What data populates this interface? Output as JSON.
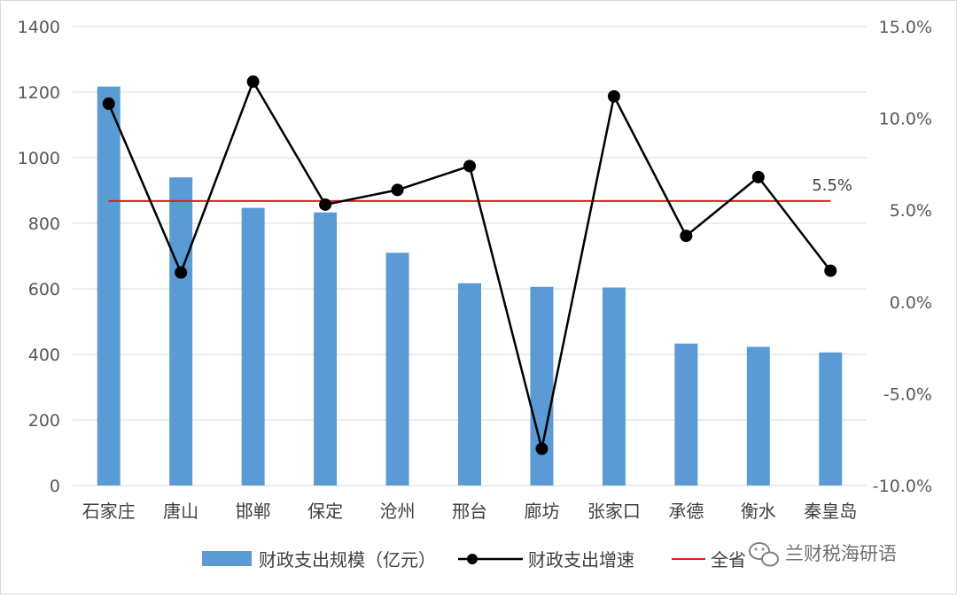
{
  "chart_data": {
    "type": "bar+line",
    "categories": [
      "石家庄",
      "唐山",
      "邯郸",
      "保定",
      "沧州",
      "邢台",
      "廊坊",
      "张家口",
      "承德",
      "衡水",
      "秦皇岛"
    ],
    "series": [
      {
        "name": "财政支出规模（亿元）",
        "type": "bar",
        "axis": "left",
        "color": "#5B9BD5",
        "values": [
          1217,
          940,
          847,
          833,
          710,
          617,
          606,
          604,
          433,
          423,
          406
        ]
      },
      {
        "name": "财政支出增速",
        "type": "line",
        "axis": "right",
        "color": "#000000",
        "values": [
          0.108,
          0.016,
          0.12,
          0.053,
          0.061,
          0.074,
          -0.08,
          0.112,
          0.036,
          0.068,
          0.017
        ]
      }
    ],
    "reference_line": {
      "name": "全省",
      "value": 0.055,
      "label": "5.5%",
      "color": "#E31A1C"
    },
    "left_axis": {
      "ylim": [
        0,
        1400
      ],
      "ticks": [
        "0",
        "200",
        "400",
        "600",
        "800",
        "1000",
        "1200",
        "1400"
      ]
    },
    "right_axis": {
      "ylim": [
        -0.1,
        0.15
      ],
      "ticks": [
        "-10.0%",
        "-5.0%",
        "0.0%",
        "5.0%",
        "10.0%",
        "15.0%"
      ]
    },
    "grid": true,
    "legend_position": "bottom"
  },
  "watermark": {
    "text": "兰财税海研语",
    "icon": "wechat-icon"
  }
}
